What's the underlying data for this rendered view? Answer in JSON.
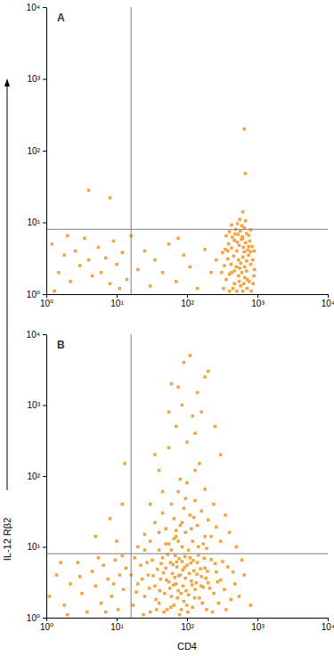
{
  "chart_data": [
    {
      "type": "scatter",
      "title": "A",
      "log": true,
      "color": "#f5a33a",
      "marker": "square",
      "xlim": [
        1,
        10000
      ],
      "ylim": [
        1,
        10000
      ],
      "xticks": [
        {
          "value": 1,
          "label": "10⁰"
        },
        {
          "value": 10,
          "label": "10¹"
        },
        {
          "value": 100,
          "label": "10²"
        },
        {
          "value": 1000,
          "label": "10³"
        },
        {
          "value": 10000,
          "label": "10⁴"
        }
      ],
      "yticks": [
        {
          "value": 1,
          "label": "10⁰"
        },
        {
          "value": 10,
          "label": "10¹"
        },
        {
          "value": 100,
          "label": "10²"
        },
        {
          "value": 1000,
          "label": "10³"
        },
        {
          "value": 10000,
          "label": "10⁴"
        }
      ],
      "quadrant_x": 16,
      "quadrant_y": 8,
      "x": [
        330,
        360,
        400,
        430,
        470,
        510,
        540,
        580,
        620,
        660,
        710,
        760,
        820,
        870,
        340,
        380,
        420,
        460,
        500,
        540,
        580,
        620,
        660,
        700,
        750,
        800,
        860,
        910,
        350,
        390,
        430,
        470,
        510,
        550,
        590,
        630,
        680,
        730,
        780,
        840,
        360,
        400,
        440,
        490,
        530,
        570,
        610,
        650,
        700,
        750,
        800,
        430,
        520,
        600,
        680,
        560,
        310,
        320,
        900,
        890,
        470,
        600,
        700,
        400,
        520,
        650,
        550,
        450,
        380,
        750,
        620,
        480,
        560,
        640,
        720,
        800,
        650,
        670,
        620,
        4,
        8,
        1.2,
        1.5,
        1.8,
        2.2,
        2.6,
        3,
        3.5,
        4,
        4.5,
        5.5,
        6,
        7,
        8,
        9,
        10,
        12,
        14,
        16,
        20,
        25,
        30,
        35,
        45,
        55,
        70,
        90,
        110,
        140,
        180,
        220,
        260,
        1.3,
        2,
        11,
        75
      ],
      "y": [
        1.2,
        1.6,
        1.1,
        2.0,
        1.4,
        1.1,
        1.8,
        1.3,
        1.1,
        1.7,
        1.2,
        1.5,
        1.1,
        1.4,
        2.5,
        3.1,
        2.6,
        3.4,
        2.4,
        3.0,
        2.7,
        3.3,
        2.4,
        2.9,
        3.5,
        2.6,
        3.0,
        2.2,
        4.2,
        5.0,
        4.4,
        5.6,
        4.0,
        4.8,
        5.8,
        4.5,
        5.2,
        4.1,
        5.5,
        4.6,
        6.5,
        7.4,
        6.2,
        8.0,
        6.8,
        7.6,
        6.3,
        8.4,
        7.0,
        6.6,
        7.9,
        9.2,
        9.6,
        9.0,
        10.5,
        11,
        2.0,
        3.8,
        4.0,
        1.8,
        2.1,
        2.0,
        2.1,
        1.9,
        5.3,
        3.9,
        1.5,
        1.2,
        4.0,
        4.6,
        6.0,
        6.9,
        2.3,
        1.4,
        1.6,
        3.9,
        200,
        48,
        14,
        28,
        22,
        5,
        2,
        3.5,
        1.5,
        4,
        2.5,
        6,
        3,
        1.8,
        4.5,
        2,
        3.2,
        1.4,
        5.5,
        2.6,
        3.8,
        1.6,
        6.5,
        2.2,
        4,
        1.3,
        3,
        2,
        5,
        1.5,
        3.5,
        2.4,
        1.2,
        4.2,
        2,
        3,
        1.1,
        6.5,
        1.2,
        6
      ]
    },
    {
      "type": "scatter",
      "title": "B",
      "x_label": "CD4",
      "y_label": "IL-12 Rβ2",
      "log": true,
      "color": "#f5a33a",
      "marker": "square",
      "xlim": [
        1,
        10000
      ],
      "ylim": [
        1,
        10000
      ],
      "xticks": [
        {
          "value": 1,
          "label": "10⁰"
        },
        {
          "value": 10,
          "label": "10¹"
        },
        {
          "value": 100,
          "label": "10²"
        },
        {
          "value": 1000,
          "label": "10³"
        },
        {
          "value": 10000,
          "label": "10⁴"
        }
      ],
      "yticks": [
        {
          "value": 1,
          "label": "10⁰"
        },
        {
          "value": 10,
          "label": "10¹"
        },
        {
          "value": 100,
          "label": "10²"
        },
        {
          "value": 1000,
          "label": "10³"
        },
        {
          "value": 10000,
          "label": "10⁴"
        }
      ],
      "quadrant_x": 16,
      "quadrant_y": 8,
      "x": [
        1.1,
        1.4,
        1.8,
        2.2,
        2.8,
        3.2,
        3.8,
        4.5,
        5,
        6,
        6.5,
        7.5,
        8.5,
        9.5,
        10.5,
        11,
        12.5,
        13.5,
        3,
        7,
        5.5,
        2,
        9,
        12,
        1.6,
        5,
        8,
        12,
        10,
        13,
        17,
        20,
        22,
        25,
        28,
        30,
        32,
        35,
        38,
        40,
        42,
        45,
        48,
        50,
        52,
        55,
        58,
        60,
        62,
        65,
        68,
        70,
        72,
        75,
        78,
        80,
        85,
        88,
        90,
        95,
        100,
        105,
        110,
        115,
        120,
        125,
        130,
        140,
        150,
        160,
        170,
        180,
        190,
        200,
        220,
        240,
        260,
        280,
        300,
        340,
        380,
        420,
        480,
        550,
        650,
        800,
        18,
        24,
        27,
        33,
        37,
        43,
        47,
        53,
        57,
        63,
        67,
        73,
        77,
        83,
        87,
        93,
        97,
        103,
        108,
        113,
        118,
        135,
        145,
        155,
        165,
        175,
        195,
        210,
        230,
        250,
        270,
        320,
        360,
        450,
        600,
        16,
        19,
        23,
        29,
        36,
        41,
        46,
        51,
        59,
        64,
        71,
        76,
        82,
        92,
        99,
        122,
        128,
        138,
        158,
        185,
        20,
        25,
        30,
        35,
        40,
        45,
        50,
        55,
        60,
        65,
        70,
        75,
        80,
        85,
        90,
        95,
        100,
        110,
        120,
        130,
        140,
        150,
        160,
        170,
        180,
        200,
        220,
        240,
        260,
        300,
        350,
        400,
        500,
        40,
        55,
        70,
        85,
        100,
        120,
        60,
        90,
        110,
        140,
        160,
        200,
        250,
        45,
        30,
        35,
        130,
        80,
        65,
        105,
        115,
        125,
        145,
        180,
        190,
        50,
        70,
        85,
        95,
        60,
        75,
        40,
        25,
        180,
        75,
        55,
        130,
        300
      ],
      "y": [
        2,
        4,
        1.5,
        3,
        6,
        2.2,
        1.2,
        4.5,
        2.8,
        1.6,
        5.5,
        3.5,
        2,
        6.5,
        1.3,
        4,
        2.5,
        5,
        3.8,
        1.2,
        7,
        1.1,
        3,
        7.5,
        6,
        14,
        25,
        40,
        12,
        150,
        1.5,
        3,
        5.5,
        2,
        4,
        1.2,
        6.5,
        2.8,
        4.8,
        1.6,
        3.5,
        7,
        2.2,
        5,
        1.3,
        3.2,
        6,
        2,
        4.2,
        1.5,
        7.5,
        3,
        5.2,
        2.4,
        1.1,
        4,
        6.2,
        2.8,
        1.7,
        3.6,
        5.5,
        2.1,
        7,
        3.3,
        1.4,
        4.6,
        2.5,
        6,
        1.9,
        3.8,
        2.7,
        5,
        1.3,
        3.1,
        6.6,
        2.2,
        4.4,
        1.6,
        3.4,
        2.5,
        5.2,
        1.8,
        3,
        2,
        4,
        1.5,
        7,
        1.1,
        6,
        3.9,
        1.3,
        5.8,
        1.2,
        7.8,
        2.6,
        5.6,
        3.7,
        1.9,
        6.8,
        1.3,
        4.7,
        7.3,
        2.4,
        1.2,
        4.2,
        5.9,
        2.9,
        3.1,
        7.6,
        4.9,
        1.6,
        6.9,
        4.5,
        2.6,
        1.2,
        5.8,
        3.2,
        6.2,
        1.3,
        4.4,
        6.5,
        4,
        2.3,
        3.5,
        2.6,
        1.8,
        2.4,
        4.3,
        3.4,
        1.4,
        2.9,
        6.1,
        3.9,
        2.2,
        5.1,
        1.5,
        6.4,
        1.9,
        4.1,
        2.8,
        3.6,
        10,
        15,
        12,
        22,
        9,
        30,
        18,
        11,
        40,
        25,
        14,
        60,
        20,
        10,
        35,
        16,
        80,
        28,
        12,
        45,
        20,
        150,
        32,
        11,
        65,
        24,
        14,
        40,
        19,
        12,
        28,
        16,
        10,
        120,
        250,
        500,
        1000,
        300,
        700,
        2000,
        4000,
        5000,
        1500,
        800,
        3000,
        500,
        60,
        40,
        200,
        120,
        90,
        13,
        9,
        18,
        26,
        10,
        14,
        9.5,
        11,
        17,
        22,
        48,
        9,
        12,
        16,
        9,
        2500,
        1800,
        800,
        400,
        200
      ]
    }
  ]
}
